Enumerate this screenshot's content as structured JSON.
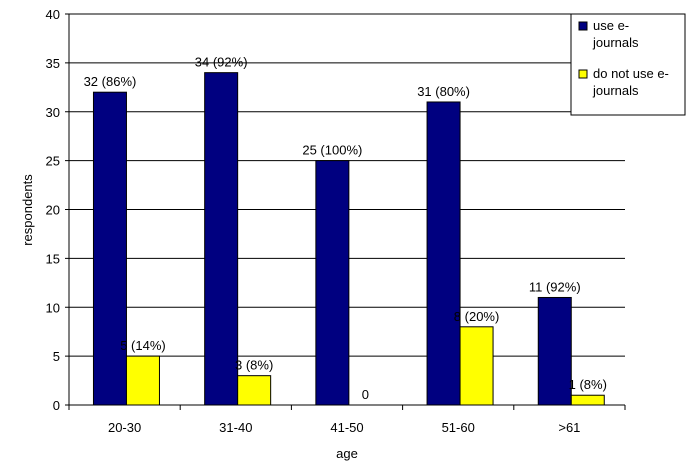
{
  "chart_data": {
    "type": "bar",
    "categories": [
      "20-30",
      "31-40",
      "41-50",
      "51-60",
      ">61"
    ],
    "series": [
      {
        "name": "use e-journals",
        "legend_lines": [
          "use e-",
          "journals"
        ],
        "color": "#000080",
        "values": [
          32,
          34,
          25,
          31,
          11
        ],
        "labels": [
          "32 (86%)",
          "34 (92%)",
          "25 (100%)",
          "31 (80%)",
          "11 (92%)"
        ]
      },
      {
        "name": "do not use e-journals",
        "legend_lines": [
          "do not use e-",
          "journals"
        ],
        "color": "#FFFF00",
        "values": [
          5,
          3,
          0,
          8,
          1
        ],
        "labels": [
          "5 (14%)",
          "3 (8%)",
          "0",
          "8 (20%)",
          "1 (8%)"
        ]
      }
    ],
    "xlabel": "age",
    "ylabel": "respondents",
    "ylim": [
      0,
      40
    ],
    "yticks": [
      0,
      5,
      10,
      15,
      20,
      25,
      30,
      35,
      40
    ],
    "grid": true,
    "legend": "top-right"
  }
}
